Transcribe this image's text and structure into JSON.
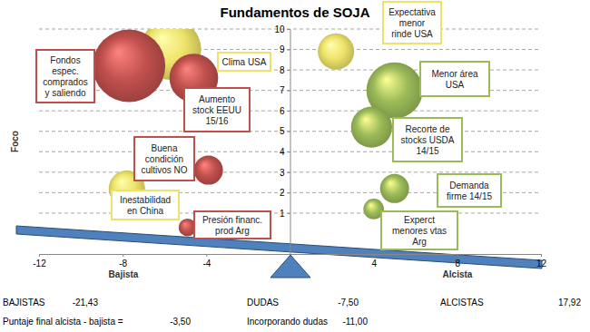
{
  "chart_data": {
    "type": "bubble",
    "title": "Fundamentos de SOJA",
    "y_label": "Foco",
    "x_side_labels": [
      "Bajista",
      "Alcista"
    ],
    "xlim": [
      -12,
      12
    ],
    "xticks": [
      -12,
      -8,
      -4,
      4,
      8,
      12
    ],
    "ylim": [
      -1,
      10
    ],
    "yticks": [
      1,
      2,
      3,
      4,
      5,
      6,
      7,
      8,
      9,
      10
    ],
    "grid": true,
    "series": [
      {
        "color": "#eee36a",
        "x": [
          -5.7,
          2.2,
          -7.8
        ],
        "values": [
          9.0,
          8.9,
          2.2
        ],
        "sizes": [
          7,
          2.5,
          2.5
        ],
        "labels": [
          [
            "Clima USA"
          ],
          [
            "Expectativa",
            "menor",
            "rinde USA"
          ],
          [
            "Inestabilidad",
            "en China"
          ]
        ]
      },
      {
        "color": "#c0504d",
        "x": [
          -7.7,
          -4.6,
          -3.9,
          -4.9
        ],
        "values": [
          8.2,
          7.6,
          3.1,
          0.3
        ],
        "sizes": [
          10,
          4.5,
          1.6,
          0.6
        ],
        "labels": [
          [
            "Fondos",
            "espec.",
            "comprados",
            "y saliendo"
          ],
          [
            "Aumento",
            "stock EEUU",
            "15/16"
          ],
          [
            "Buena",
            "condición",
            "cultivos NO"
          ],
          [
            "Presión financ.",
            "prod Arg"
          ]
        ]
      },
      {
        "color": "#9bbb59",
        "x": [
          5.0,
          3.9,
          5.0,
          4.0
        ],
        "values": [
          7.0,
          5.2,
          2.2,
          1.2
        ],
        "sizes": [
          6,
          3.2,
          1.6,
          0.8
        ],
        "labels": [
          [
            "Menor área",
            "USA"
          ],
          [
            "Recorte de",
            "stocks USDA",
            "14/15"
          ],
          [
            "Demanda",
            "firme 14/15"
          ],
          [
            "Experct",
            "menores vtas",
            "Arg"
          ]
        ]
      }
    ],
    "summary": [
      [
        "BAJISTAS",
        "-21,43",
        "DUDAS",
        "-7,50",
        "ALCISTAS",
        "17,92"
      ],
      [
        "Puntaje final alcista - bajista =",
        "-3,50",
        "Incorporando dudas",
        "-11,00"
      ]
    ]
  }
}
